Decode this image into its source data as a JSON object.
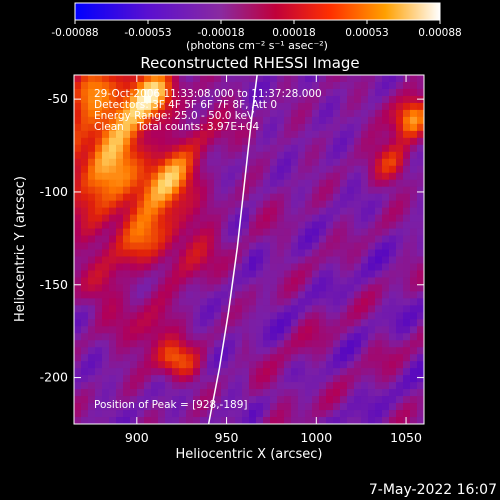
{
  "chart_data": {
    "type": "heatmap",
    "title": "Reconstructed RHESSI Image",
    "xlabel": "Heliocentric X (arcsec)",
    "ylabel": "Heliocentric Y (arcsec)",
    "xlim": [
      865,
      1060
    ],
    "ylim": [
      -225,
      -37
    ],
    "x_ticks": [
      900,
      950,
      1000,
      1050
    ],
    "y_ticks": [
      -50,
      -100,
      -150,
      -200
    ],
    "colorbar": {
      "label": "(photons cm⁻² s⁻¹ asec⁻²)",
      "range": [
        -0.00088,
        0.00088
      ],
      "ticks": [
        "-0.00088",
        "-0.00053",
        "-0.00018",
        "0.00018",
        "0.00053",
        "0.00088"
      ]
    },
    "annotations": {
      "time": "29-Oct-2006 11:33:08.000 to 11:37:28.000",
      "detectors": "Detectors: 3F 4F 5F 6F 7F 8F, Att 0",
      "energy": "Energy Range: 25.0 - 50.0 keV",
      "counts": "Clean    Total counts: 3.97E+04",
      "peak": "Position of Peak = [928,-189]"
    },
    "peak": [
      928,
      -189
    ],
    "limb_curve": [
      [
        940,
        -225
      ],
      [
        946,
        -195
      ],
      [
        951,
        -165
      ],
      [
        956,
        -130
      ],
      [
        960,
        -95
      ],
      [
        964,
        -60
      ],
      [
        967,
        -37
      ]
    ],
    "colors": {
      "background": "#000000",
      "colormap": [
        "#1a00ff",
        "#4b00c8",
        "#7a1fa8",
        "#b0005a",
        "#e0200a",
        "#ff7a00",
        "#ffd060",
        "#fffff0"
      ]
    }
  },
  "footer": {
    "date": "7-May-2022 16:07"
  }
}
